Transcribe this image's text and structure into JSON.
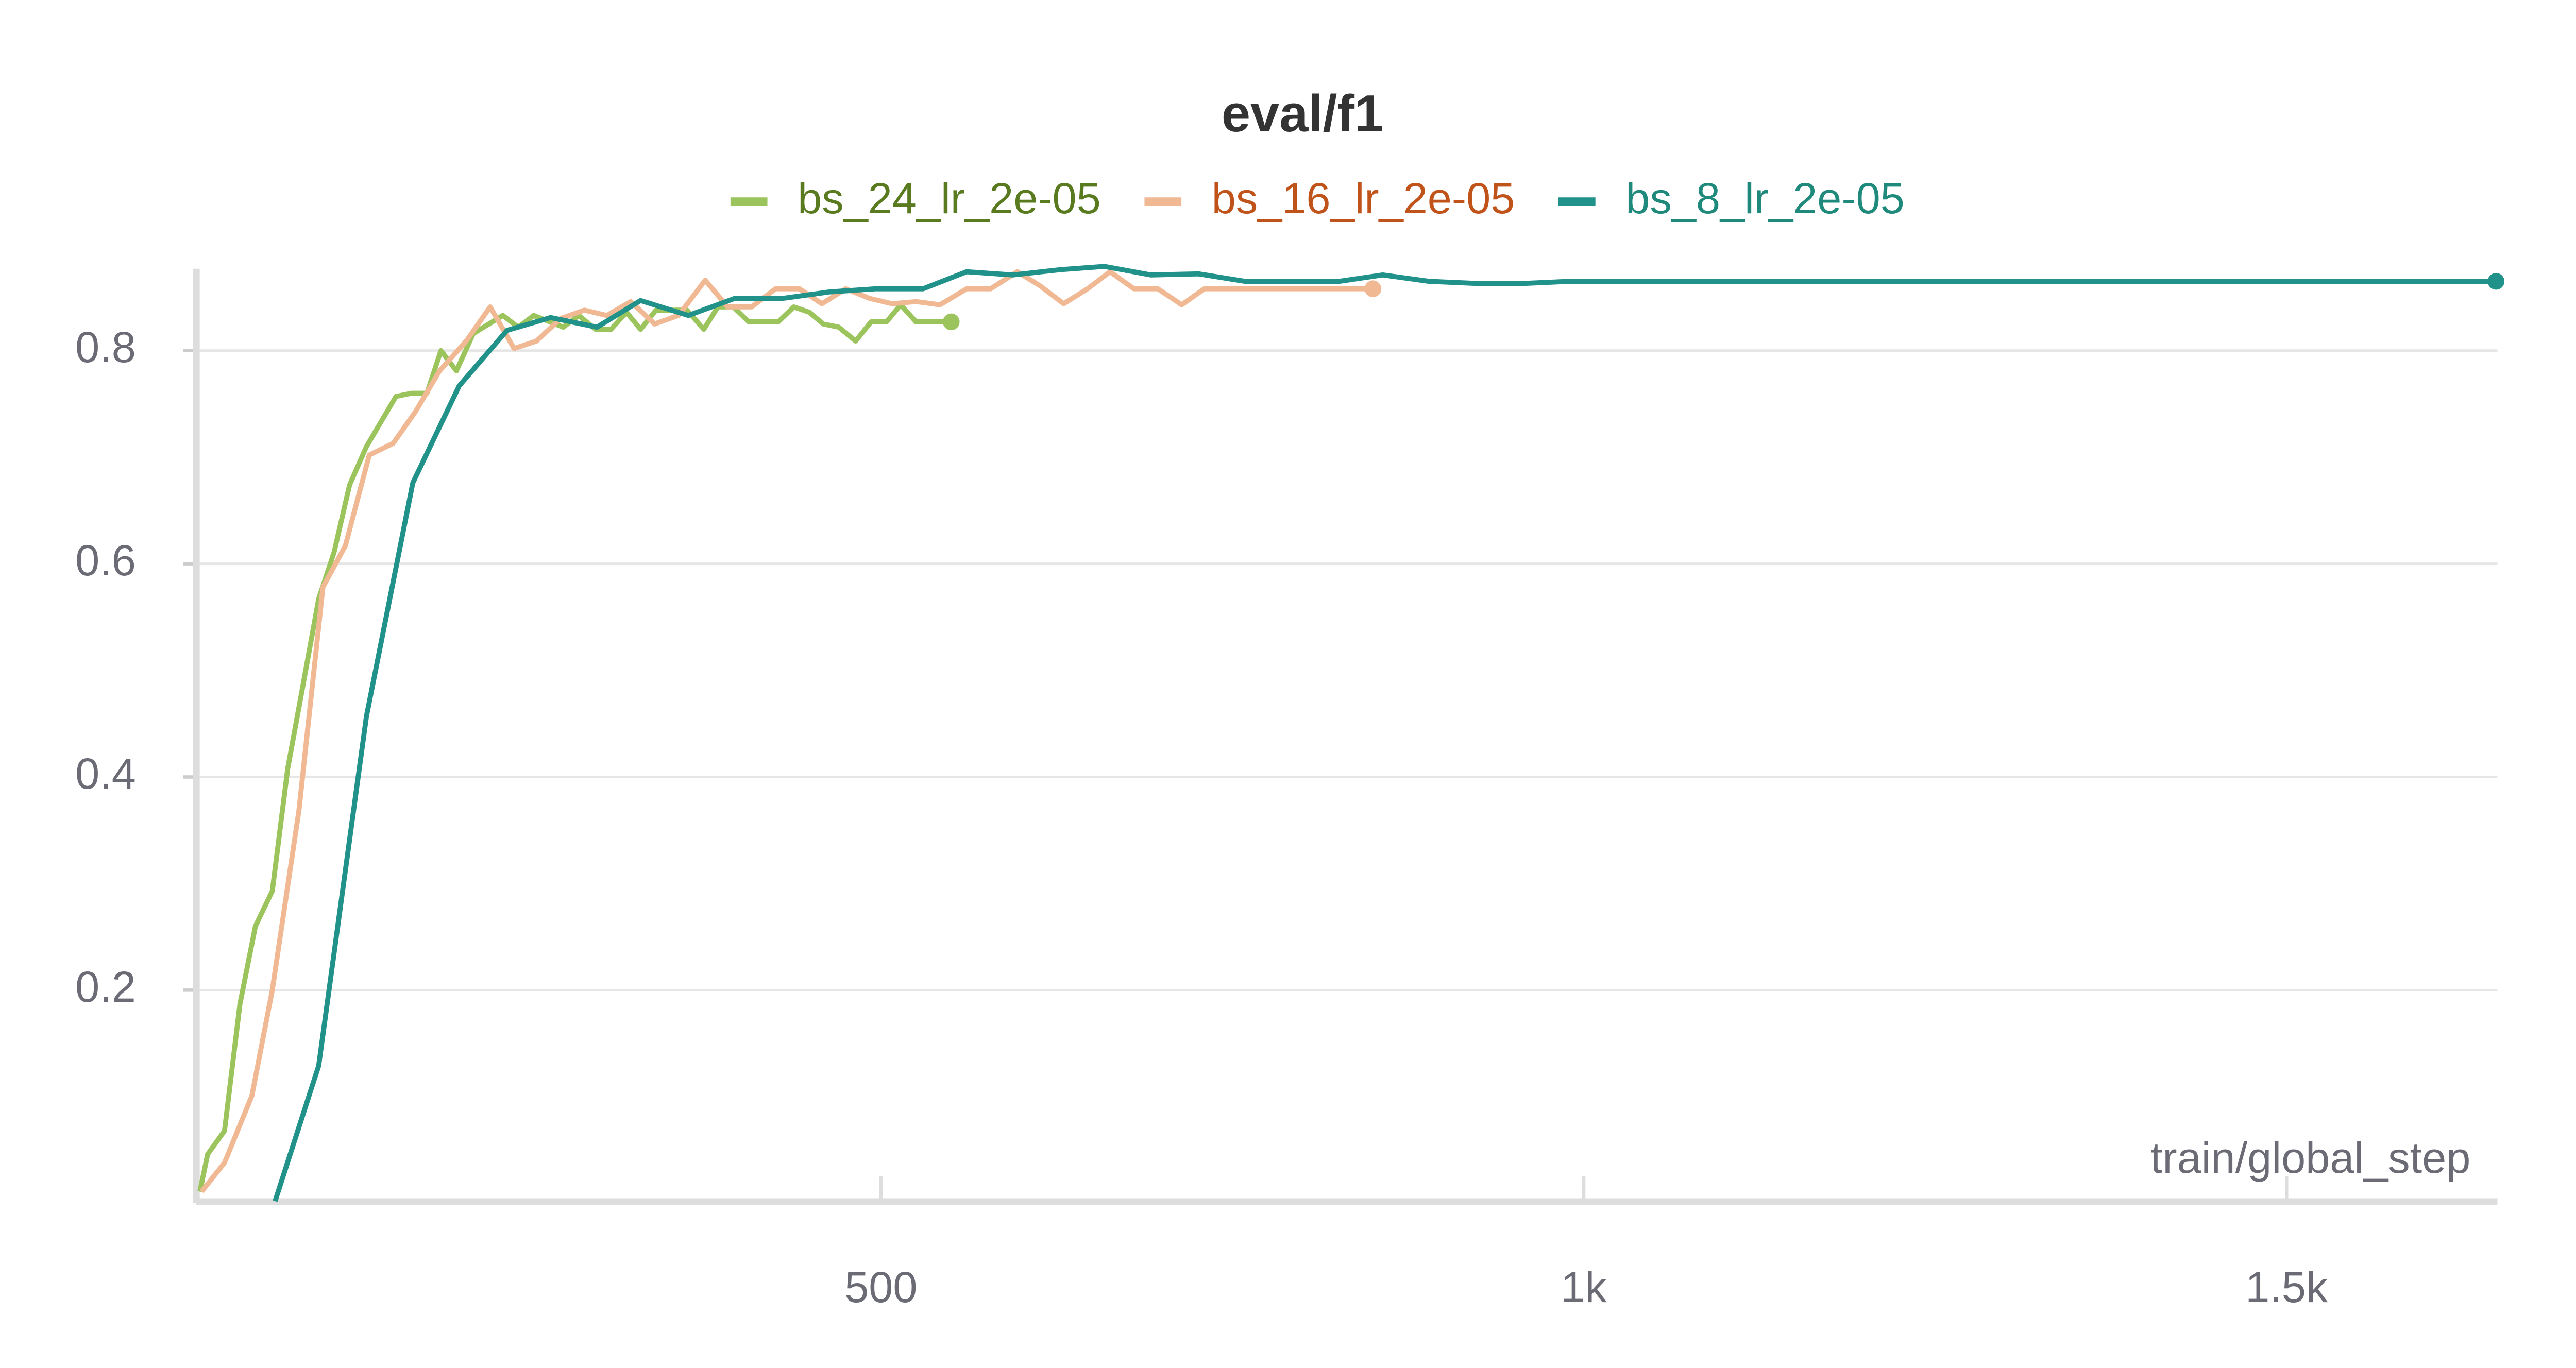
{
  "chart_data": {
    "type": "line",
    "title": "eval/f1",
    "x_label": "train/global_step",
    "xlim": [
      13,
      1650
    ],
    "ylim": [
      0,
      0.88
    ],
    "xticks": [
      {
        "value": 500,
        "label": "500"
      },
      {
        "value": 1000,
        "label": "1k"
      },
      {
        "value": 1500,
        "label": "1.5k"
      }
    ],
    "yticks": [
      0.2,
      0.4,
      0.6,
      0.8
    ],
    "grid": true,
    "legend": "top",
    "series": [
      {
        "name": "bs_24_lr_2e-05",
        "color": "#9cc45c",
        "legend_text_color": "#5a7a1f",
        "x": [
          15.5,
          21,
          33,
          44,
          55,
          67,
          78,
          88,
          100,
          111,
          122,
          134,
          155,
          166,
          177,
          187,
          198,
          210,
          231,
          242,
          253,
          274,
          285,
          297,
          308,
          319,
          329,
          340,
          362,
          374,
          384,
          395,
          406,
          427,
          438,
          449,
          459,
          470,
          482,
          493,
          504,
          514,
          525,
          536,
          550
        ],
        "values": [
          0.011,
          0.046,
          0.068,
          0.187,
          0.26,
          0.293,
          0.408,
          0.48,
          0.567,
          0.611,
          0.674,
          0.71,
          0.757,
          0.76,
          0.76,
          0.8,
          0.781,
          0.816,
          0.833,
          0.822,
          0.833,
          0.822,
          0.833,
          0.82,
          0.82,
          0.836,
          0.82,
          0.838,
          0.838,
          0.82,
          0.841,
          0.841,
          0.827,
          0.827,
          0.841,
          0.836,
          0.825,
          0.822,
          0.809,
          0.827,
          0.827,
          0.843,
          0.827,
          0.827,
          0.827
        ]
      },
      {
        "name": "bs_16_lr_2e-05",
        "color": "#f0b994",
        "legend_text_color": "#c0531a",
        "x": [
          16.7,
          33,
          52.5,
          67,
          86,
          103,
          119,
          136,
          153,
          169,
          186,
          205,
          222,
          239,
          255,
          272,
          289,
          305,
          322,
          339,
          356,
          375,
          391,
          408,
          425,
          442,
          458,
          475,
          492,
          508,
          525,
          542,
          561,
          578,
          597,
          613,
          630,
          647,
          663,
          680,
          697,
          714,
          730,
          749,
          780,
          816,
          850
        ],
        "values": [
          0.011,
          0.038,
          0.101,
          0.2,
          0.369,
          0.578,
          0.617,
          0.702,
          0.713,
          0.743,
          0.781,
          0.809,
          0.841,
          0.802,
          0.809,
          0.83,
          0.838,
          0.833,
          0.846,
          0.825,
          0.833,
          0.866,
          0.841,
          0.841,
          0.858,
          0.858,
          0.844,
          0.858,
          0.849,
          0.844,
          0.846,
          0.843,
          0.858,
          0.858,
          0.874,
          0.861,
          0.844,
          0.858,
          0.874,
          0.858,
          0.858,
          0.843,
          0.858,
          0.858,
          0.858,
          0.858,
          0.858
        ]
      },
      {
        "name": "bs_8_lr_2e-05",
        "color": "#21928a",
        "legend_text_color": "#1f8a7c",
        "x": [
          69,
          100,
          134,
          167,
          200,
          234,
          265,
          298,
          329,
          363,
          396,
          430,
          463,
          496,
          530,
          561,
          594,
          628,
          659,
          692,
          726,
          759,
          792,
          826,
          857,
          890,
          924,
          957,
          990,
          1100,
          1300,
          1500,
          1649
        ],
        "values": [
          0.002,
          0.129,
          0.457,
          0.676,
          0.767,
          0.819,
          0.831,
          0.822,
          0.847,
          0.833,
          0.849,
          0.849,
          0.855,
          0.858,
          0.858,
          0.874,
          0.871,
          0.876,
          0.879,
          0.871,
          0.872,
          0.865,
          0.865,
          0.865,
          0.871,
          0.865,
          0.863,
          0.863,
          0.865,
          0.865,
          0.865,
          0.865,
          0.865
        ]
      }
    ]
  }
}
